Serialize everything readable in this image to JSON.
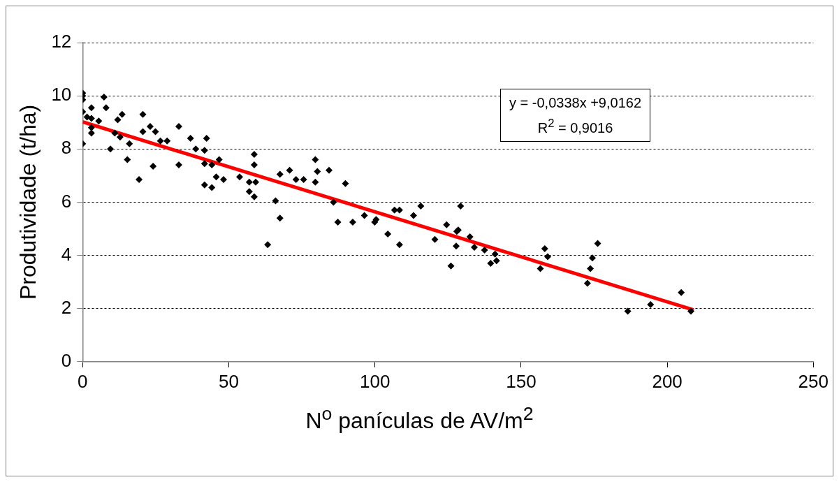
{
  "chart_data": {
    "type": "scatter",
    "xlabel": "N$^{o}$ panículas de AV/m$^{2}$",
    "ylabel": "Produtividade (t/ha)",
    "xlim": [
      0,
      250
    ],
    "xticks": [
      0,
      50,
      100,
      150,
      200,
      250
    ],
    "ylim": [
      0,
      12
    ],
    "yticks": [
      0,
      2,
      4,
      6,
      8,
      10,
      12
    ],
    "grid": "y",
    "legend": false,
    "marker": "diamond",
    "annotations": [
      "y = -0,0338x +9,0162",
      "R$^{2}$ = 0,9016"
    ],
    "series": [
      {
        "color": "#000000",
        "x": [
          0,
          0,
          0,
          0,
          0,
          1.5,
          3,
          3,
          3,
          3,
          5.5,
          7.3,
          8,
          9.5,
          12,
          13.5,
          11,
          12.8,
          15.3,
          16,
          19.3,
          20.6,
          20.6,
          23.1,
          24.1,
          24.9,
          26.6,
          28.9,
          32.9,
          32.9,
          36.9,
          38.7,
          41.7,
          41.7,
          42.4,
          41.7,
          44.2,
          44.2,
          45.7,
          46.7,
          48.2,
          53.7,
          57,
          57,
          58.7,
          58.7,
          58.7,
          59.2,
          63.3,
          66,
          67.5,
          67.5,
          70.8,
          73,
          75.6,
          79.6,
          79.6,
          80.3,
          84.3,
          85.8,
          87.3,
          89.9,
          92.4,
          96.4,
          99.9,
          100.4,
          104.4,
          106.7,
          108.4,
          108.4,
          113.2,
          115.7,
          120.5,
          124.5,
          126,
          127.8,
          128,
          128.5,
          129.3,
          132.5,
          134,
          137.5,
          139.6,
          141.1,
          141.6,
          156.6,
          158.1,
          159.1,
          172.7,
          173.7,
          174.4,
          176.2,
          186.5,
          194.3,
          204.8,
          208.1
        ],
        "values": [
          10.1,
          10,
          9.85,
          9.4,
          8.2,
          9.2,
          9.55,
          9.15,
          8.8,
          8.6,
          9.05,
          9.95,
          9.55,
          8,
          9.1,
          9.3,
          8.6,
          8.45,
          7.6,
          8.2,
          6.85,
          9.3,
          8.65,
          8.85,
          7.35,
          8.65,
          8.3,
          8.3,
          8.85,
          7.4,
          8.4,
          8,
          7.95,
          6.65,
          8.4,
          7.45,
          6.55,
          7.4,
          6.95,
          7.6,
          6.85,
          6.95,
          6.75,
          6.4,
          7.8,
          7.4,
          6.2,
          6.75,
          4.4,
          6.05,
          7.05,
          5.4,
          7.2,
          6.85,
          6.85,
          7.6,
          6.75,
          7.15,
          7.2,
          6,
          5.25,
          6.7,
          5.25,
          5.5,
          5.25,
          5.35,
          4.8,
          5.7,
          5.7,
          4.4,
          5.5,
          5.85,
          4.6,
          5.15,
          3.6,
          4.35,
          4.9,
          4.95,
          5.85,
          4.7,
          4.3,
          4.2,
          3.7,
          4.05,
          3.8,
          3.5,
          4.25,
          3.95,
          2.95,
          3.5,
          3.9,
          4.45,
          1.9,
          2.15,
          2.6,
          1.9
        ]
      },
      {
        "type": "line",
        "color": "#ff0000",
        "marker": "none",
        "x": [
          0,
          209
        ],
        "values": [
          9.02,
          1.95
        ]
      }
    ]
  }
}
